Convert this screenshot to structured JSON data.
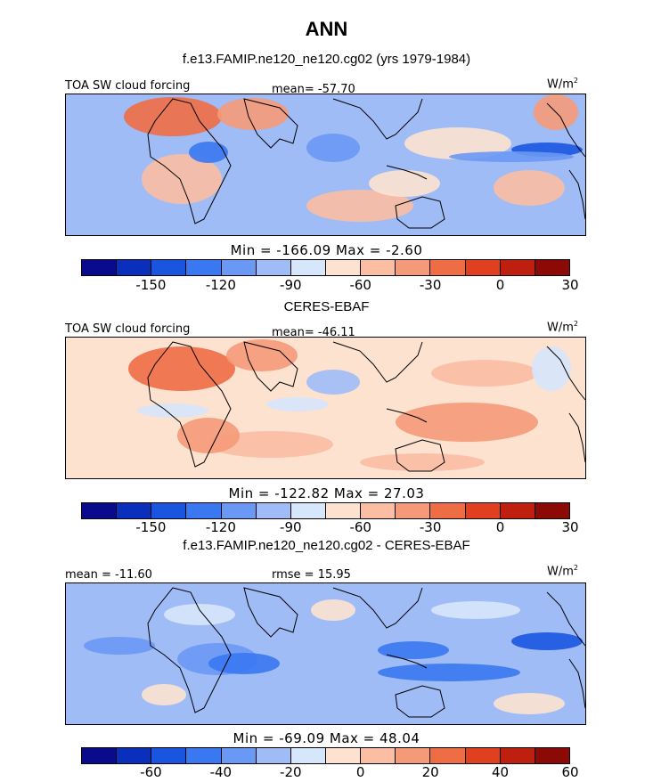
{
  "title": "ANN",
  "colors": {
    "cb_plain": [
      "#0a0a8c",
      "#0b2fbd",
      "#1a55e0",
      "#3a78f2",
      "#6a98f5",
      "#9fbcf6",
      "#d6e6fb",
      "#fde2d0",
      "#fbbea3",
      "#f59a78",
      "#ee6d45",
      "#e0401f",
      "#bf1f0f",
      "#8b0a05"
    ]
  },
  "chart_data": [
    {
      "type": "heatmap",
      "title": "f.e13.FAMIP.ne120_ne120.cg02 (yrs 1979-1984)",
      "left_label": "TOA SW cloud forcing",
      "stat_label": "mean= -57.70",
      "units_label": "W/m",
      "units_sup": "2",
      "min_max": "Min = -166.09 Max =  -2.60",
      "mean": -57.7,
      "min": -166.09,
      "max": -2.6,
      "units": "W/m2",
      "levels": [
        -165,
        -150,
        -135,
        -120,
        -105,
        -90,
        -75,
        -60,
        -45,
        -30,
        -15,
        0,
        15,
        30,
        45
      ],
      "colorbar_ticks": [
        "-150",
        "-120",
        "-90",
        "-60",
        "-30",
        "0",
        "30"
      ]
    },
    {
      "type": "heatmap",
      "title": "CERES-EBAF",
      "left_label": "TOA SW cloud forcing",
      "stat_label": "mean= -46.11",
      "units_label": "W/m",
      "units_sup": "2",
      "min_max": "Min = -122.82 Max =  27.03",
      "mean": -46.11,
      "min": -122.82,
      "max": 27.03,
      "units": "W/m2",
      "levels": [
        -165,
        -150,
        -135,
        -120,
        -105,
        -90,
        -75,
        -60,
        -45,
        -30,
        -15,
        0,
        15,
        30,
        45
      ],
      "colorbar_ticks": [
        "-150",
        "-120",
        "-90",
        "-60",
        "-30",
        "0",
        "30"
      ]
    },
    {
      "type": "heatmap",
      "title": "f.e13.FAMIP.ne120_ne120.cg02 - CERES-EBAF",
      "left_label": "mean = -11.60",
      "stat_label": "rmse =  15.95",
      "units_label": "W/m",
      "units_sup": "2",
      "min_max": "Min = -69.09 Max =  48.04",
      "mean": -11.6,
      "rmse": 15.95,
      "min": -69.09,
      "max": 48.04,
      "units": "W/m2",
      "levels": [
        -70,
        -60,
        -50,
        -40,
        -30,
        -20,
        -10,
        0,
        10,
        20,
        30,
        40,
        50,
        60,
        70
      ],
      "colorbar_ticks": [
        "-60",
        "-40",
        "-20",
        "0",
        "20",
        "40",
        "60"
      ]
    }
  ]
}
